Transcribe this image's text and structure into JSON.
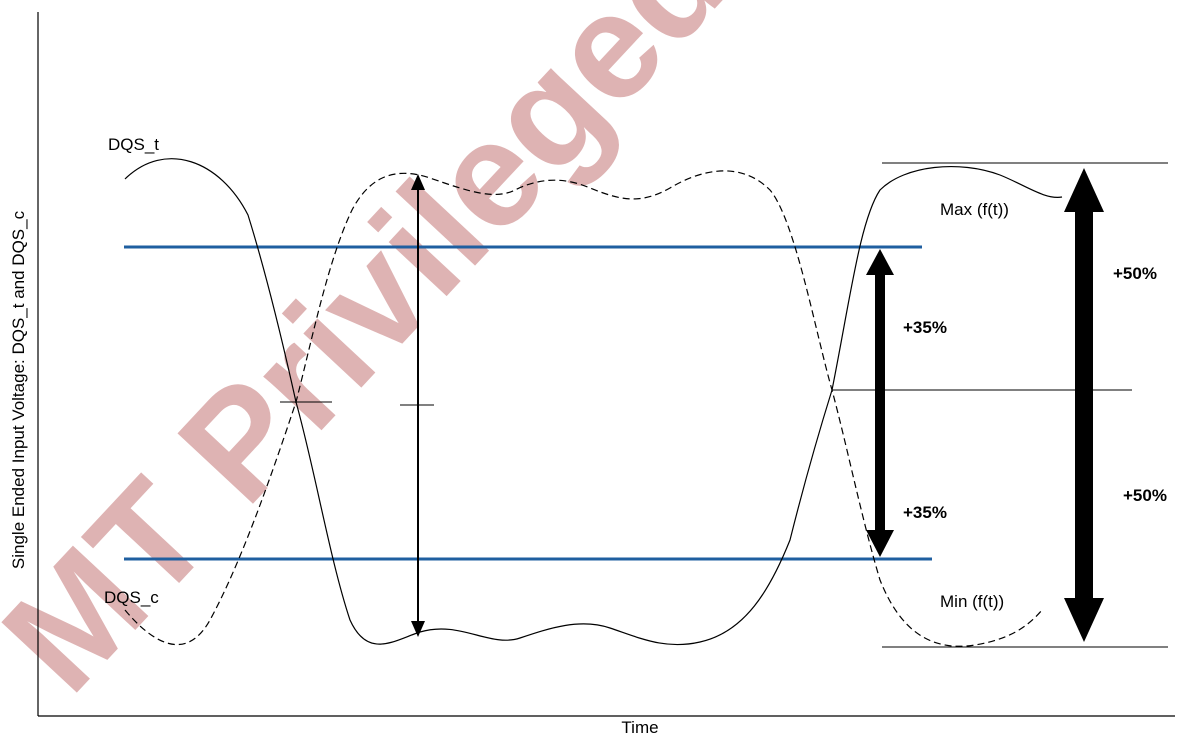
{
  "axes": {
    "y_label": "Single Ended Input Voltage: DQS_t and DQS_c",
    "x_label": "Time"
  },
  "signals": {
    "dqs_t": "DQS_t",
    "dqs_c": "DQS_c"
  },
  "annotations": {
    "max": "Max (f(t))",
    "min": "Min (f(t))",
    "upper_35": "+35%",
    "lower_35": "+35%",
    "upper_50": "+50%",
    "lower_50": "+50%"
  },
  "watermark": "MT Privileged and",
  "colors": {
    "threshold": "#1f5fa0",
    "watermark": "#d9a6a6",
    "ink": "#000000"
  }
}
